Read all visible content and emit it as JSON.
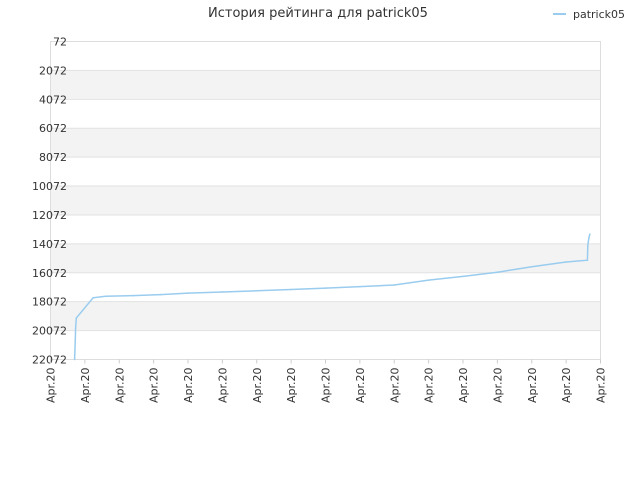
{
  "chart_data": {
    "type": "line",
    "title": "История рейтинга для patrick05",
    "xlabel": "",
    "ylabel": "",
    "y_reversed": true,
    "ylim": [
      72,
      22072
    ],
    "y_ticks": [
      72,
      2072,
      4072,
      6072,
      8072,
      10072,
      12072,
      14072,
      16072,
      18072,
      20072,
      22072
    ],
    "x_ticks": [
      "Apr.20",
      "Apr.20",
      "Apr.20",
      "Apr.20",
      "Apr.20",
      "Apr.20",
      "Apr.20",
      "Apr.20",
      "Apr.20",
      "Apr.20",
      "Apr.20",
      "Apr.20",
      "Apr.20",
      "Apr.20",
      "Apr.20",
      "Apr.20",
      "Apr.20"
    ],
    "x_range": [
      0,
      16
    ],
    "grid": true,
    "legend_position": "top-right",
    "series": [
      {
        "name": "patrick05",
        "color": "#99ccee",
        "points": [
          [
            0.7,
            22072
          ],
          [
            0.72,
            20700
          ],
          [
            0.73,
            19900
          ],
          [
            0.75,
            19200
          ],
          [
            1.24,
            17800
          ],
          [
            1.6,
            17700
          ],
          [
            2.4,
            17650
          ],
          [
            3.2,
            17580
          ],
          [
            4.0,
            17480
          ],
          [
            5.0,
            17400
          ],
          [
            6.0,
            17320
          ],
          [
            7.0,
            17230
          ],
          [
            8.0,
            17130
          ],
          [
            9.0,
            17030
          ],
          [
            10.0,
            16920
          ],
          [
            11.0,
            16580
          ],
          [
            12.0,
            16320
          ],
          [
            13.0,
            16030
          ],
          [
            14.0,
            15650
          ],
          [
            15.0,
            15330
          ],
          [
            15.62,
            15200
          ],
          [
            15.63,
            14200
          ],
          [
            15.66,
            13700
          ],
          [
            15.69,
            13400
          ]
        ]
      }
    ]
  }
}
